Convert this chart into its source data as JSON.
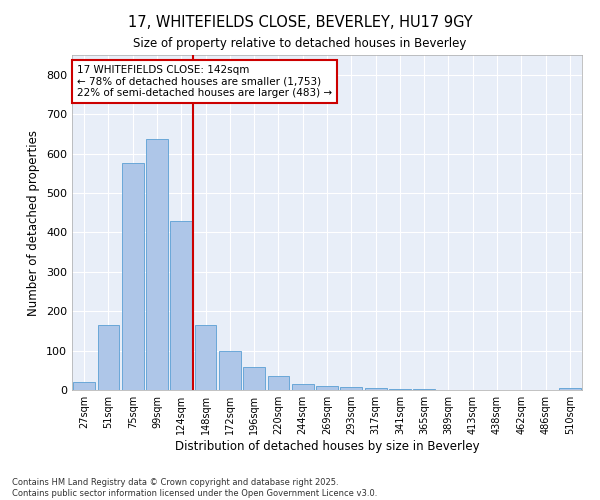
{
  "title": "17, WHITEFIELDS CLOSE, BEVERLEY, HU17 9GY",
  "subtitle": "Size of property relative to detached houses in Beverley",
  "xlabel": "Distribution of detached houses by size in Beverley",
  "ylabel": "Number of detached properties",
  "bar_color": "#aec6e8",
  "bar_edge_color": "#5a9fd4",
  "bg_color": "#e8eef8",
  "grid_color": "#ffffff",
  "vline_color": "#cc0000",
  "annotation_text": "17 WHITEFIELDS CLOSE: 142sqm\n← 78% of detached houses are smaller (1,753)\n22% of semi-detached houses are larger (483) →",
  "annotation_box_color": "#ffffff",
  "annotation_box_edge": "#cc0000",
  "categories": [
    "27sqm",
    "51sqm",
    "75sqm",
    "99sqm",
    "124sqm",
    "148sqm",
    "172sqm",
    "196sqm",
    "220sqm",
    "244sqm",
    "269sqm",
    "293sqm",
    "317sqm",
    "341sqm",
    "365sqm",
    "389sqm",
    "413sqm",
    "438sqm",
    "462sqm",
    "486sqm",
    "510sqm"
  ],
  "values": [
    20,
    165,
    575,
    638,
    430,
    165,
    100,
    58,
    35,
    15,
    10,
    8,
    5,
    3,
    3,
    1,
    1,
    0,
    0,
    0,
    5
  ],
  "ylim": [
    0,
    850
  ],
  "yticks": [
    0,
    100,
    200,
    300,
    400,
    500,
    600,
    700,
    800
  ],
  "footnote": "Contains HM Land Registry data © Crown copyright and database right 2025.\nContains public sector information licensed under the Open Government Licence v3.0.",
  "figsize": [
    6.0,
    5.0
  ],
  "dpi": 100
}
